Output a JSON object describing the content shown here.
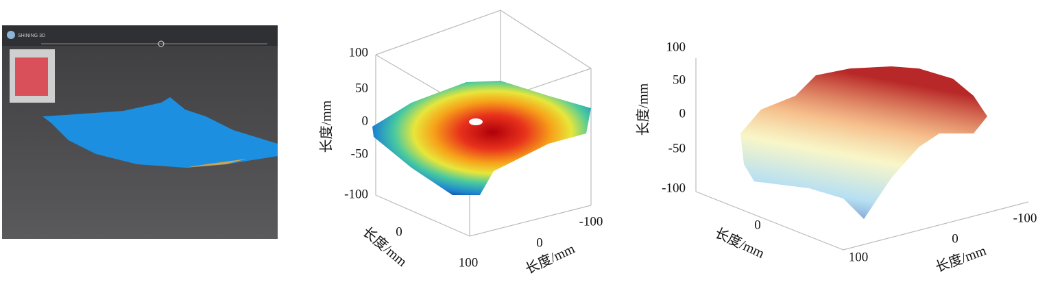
{
  "panels": [
    {
      "brand": "SHINING 3D"
    },
    {
      "z_ticks": [
        100,
        50,
        0,
        -50,
        -100
      ],
      "z_label": "长度/mm",
      "x_ticks": [
        0,
        100
      ],
      "x_label": "长度/mm",
      "y_ticks": [
        0,
        -100
      ],
      "y_label": "长度/mm"
    },
    {
      "z_ticks": [
        100,
        50,
        0,
        -50,
        -100
      ],
      "z_label": "长度/mm",
      "x_ticks": [
        0,
        100
      ],
      "x_label": "长度/mm",
      "y_ticks": [
        0,
        -100
      ],
      "y_label": "长度/mm"
    }
  ]
}
